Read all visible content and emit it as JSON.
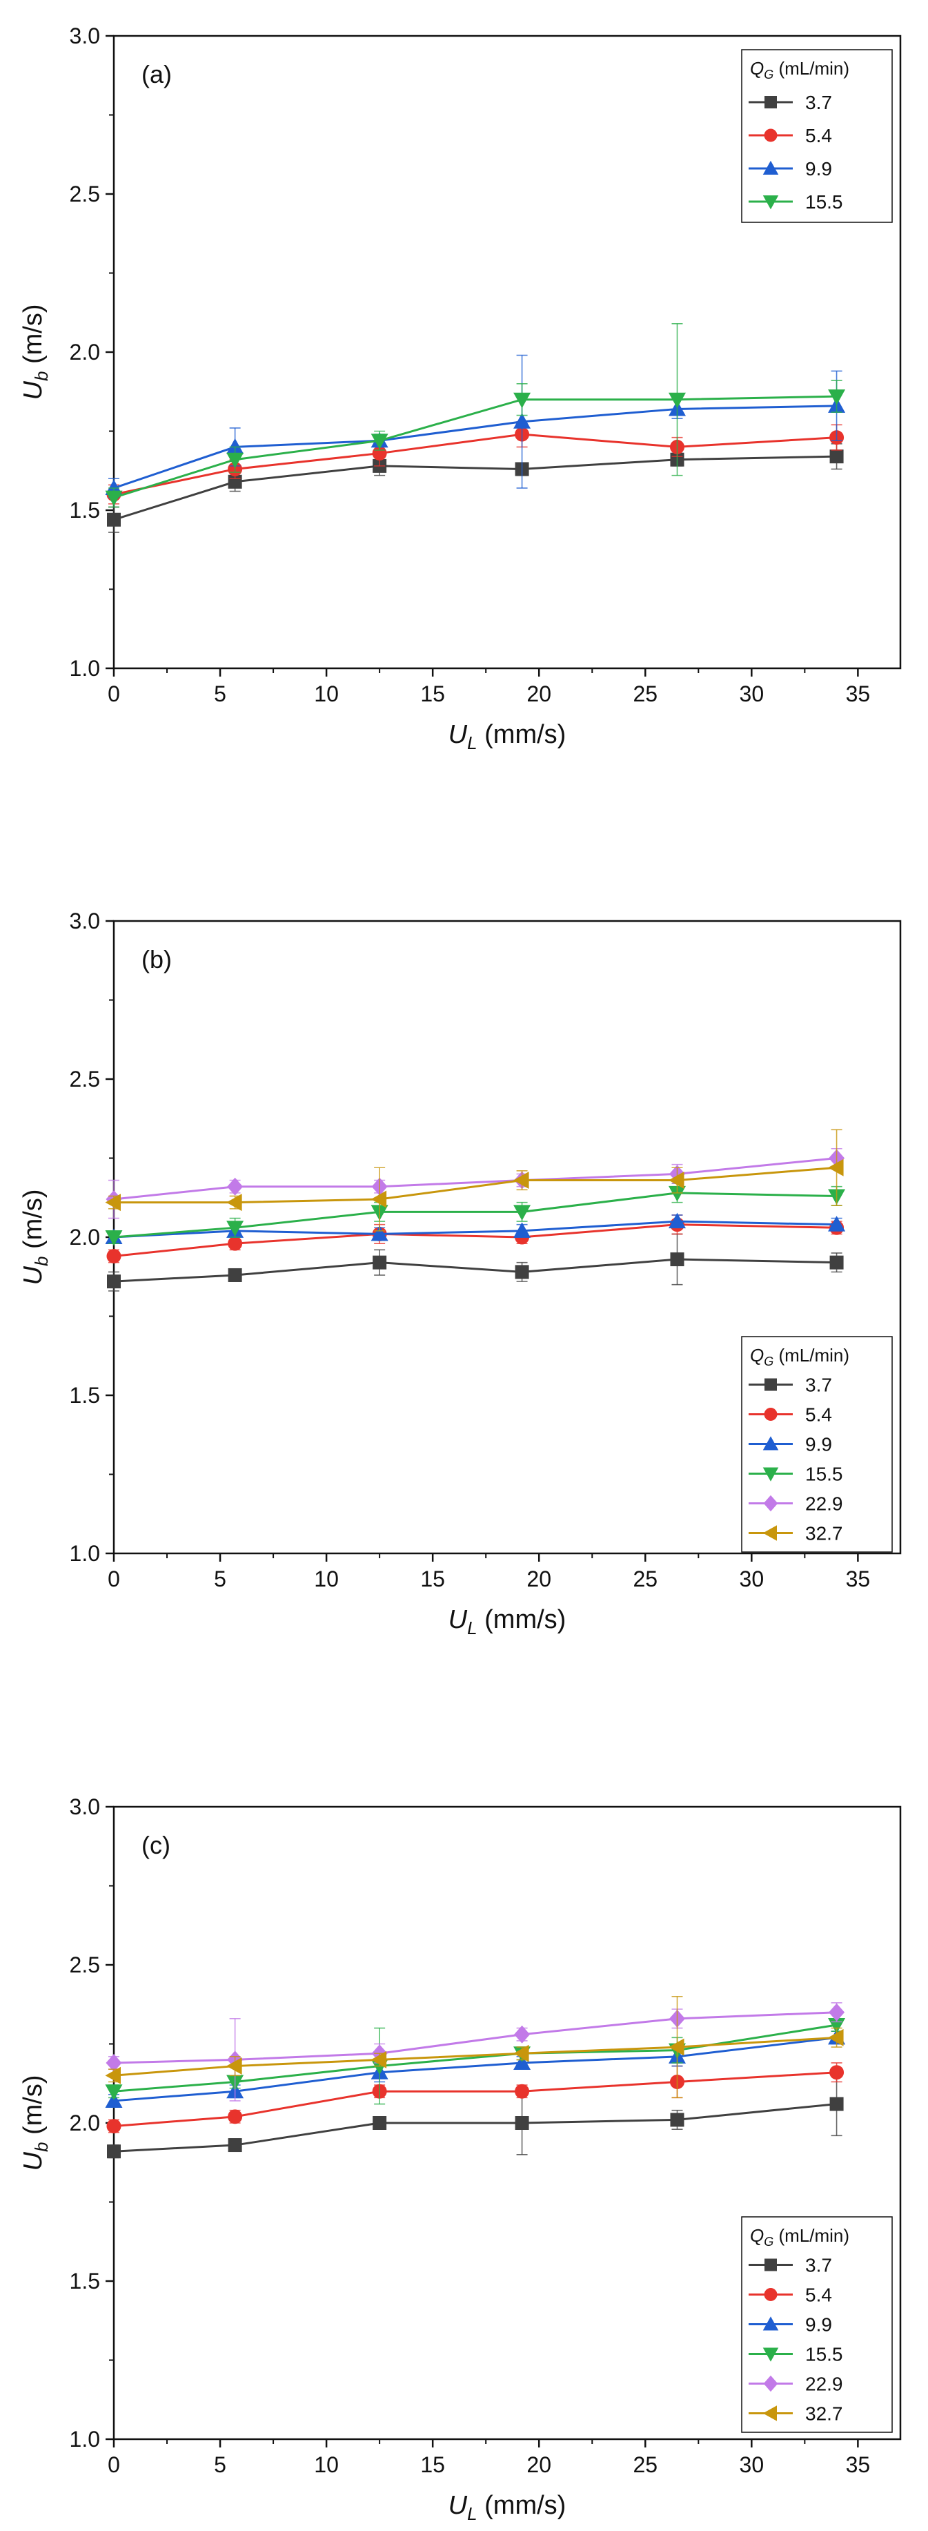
{
  "chart_data": [
    {
      "type": "line",
      "panel_label": "(a)",
      "xlabel": {
        "main": "U",
        "sub": "L",
        "unit": " (mm/s)"
      },
      "ylabel": {
        "main": "U",
        "sub": "b",
        "unit": " (m/s)"
      },
      "xlim": [
        0,
        37
      ],
      "ylim": [
        1.0,
        3.0
      ],
      "xticks": [
        0,
        5,
        10,
        15,
        20,
        25,
        30,
        35
      ],
      "yticks": [
        1.0,
        1.5,
        2.0,
        2.5,
        3.0
      ],
      "xtick_labels": [
        "0",
        "5",
        "10",
        "15",
        "20",
        "25",
        "30",
        "35"
      ],
      "ytick_labels": [
        "1.0",
        "1.5",
        "2.0",
        "2.5",
        "3.0"
      ],
      "legend": {
        "title_main": "Q",
        "title_sub": "G",
        "title_unit": " (mL/min)",
        "placement": "top-right"
      },
      "x": [
        0,
        5.7,
        12.5,
        19.2,
        26.5,
        34
      ],
      "series": [
        {
          "name": "3.7",
          "color": "#404040",
          "marker": "square",
          "values": [
            1.47,
            1.59,
            1.64,
            1.63,
            1.66,
            1.67
          ],
          "errors": [
            0.04,
            0.03,
            0.03,
            0.02,
            0.02,
            0.04
          ]
        },
        {
          "name": "5.4",
          "color": "#e8332c",
          "marker": "circle",
          "values": [
            1.55,
            1.63,
            1.68,
            1.74,
            1.7,
            1.73
          ],
          "errors": [
            0.03,
            0.03,
            0.04,
            0.04,
            0.03,
            0.04
          ]
        },
        {
          "name": "9.9",
          "color": "#1f5ed1",
          "marker": "triangle-up",
          "values": [
            1.57,
            1.7,
            1.72,
            1.78,
            1.82,
            1.83
          ],
          "errors": [
            0.03,
            0.06,
            0.02,
            0.21,
            0.03,
            0.11
          ]
        },
        {
          "name": "15.5",
          "color": "#2bb04a",
          "marker": "triangle-down",
          "values": [
            1.54,
            1.66,
            1.72,
            1.85,
            1.85,
            1.86
          ],
          "errors": [
            0.03,
            0.04,
            0.03,
            0.05,
            0.24,
            0.05
          ]
        }
      ]
    },
    {
      "type": "line",
      "panel_label": "(b)",
      "xlabel": {
        "main": "U",
        "sub": "L",
        "unit": " (mm/s)"
      },
      "ylabel": {
        "main": "U",
        "sub": "b",
        "unit": " (m/s)"
      },
      "xlim": [
        0,
        37
      ],
      "ylim": [
        1.0,
        3.0
      ],
      "xticks": [
        0,
        5,
        10,
        15,
        20,
        25,
        30,
        35
      ],
      "yticks": [
        1.0,
        1.5,
        2.0,
        2.5,
        3.0
      ],
      "xtick_labels": [
        "0",
        "5",
        "10",
        "15",
        "20",
        "25",
        "30",
        "35"
      ],
      "ytick_labels": [
        "1.0",
        "1.5",
        "2.0",
        "2.5",
        "3.0"
      ],
      "legend": {
        "title_main": "Q",
        "title_sub": "G",
        "title_unit": " (mL/min)",
        "placement": "bottom-right"
      },
      "x": [
        0,
        5.7,
        12.5,
        19.2,
        26.5,
        34
      ],
      "series": [
        {
          "name": "3.7",
          "color": "#404040",
          "marker": "square",
          "values": [
            1.86,
            1.88,
            1.92,
            1.89,
            1.93,
            1.92
          ],
          "errors": [
            0.03,
            0.02,
            0.04,
            0.03,
            0.08,
            0.03
          ]
        },
        {
          "name": "5.4",
          "color": "#e8332c",
          "marker": "circle",
          "values": [
            1.94,
            1.98,
            2.01,
            2.0,
            2.04,
            2.03
          ],
          "errors": [
            0.02,
            0.02,
            0.03,
            0.02,
            0.03,
            0.02
          ]
        },
        {
          "name": "9.9",
          "color": "#1f5ed1",
          "marker": "triangle-up",
          "values": [
            2.0,
            2.02,
            2.01,
            2.02,
            2.05,
            2.04
          ],
          "errors": [
            0.02,
            0.02,
            0.02,
            0.02,
            0.02,
            0.02
          ]
        },
        {
          "name": "15.5",
          "color": "#2bb04a",
          "marker": "triangle-down",
          "values": [
            2.0,
            2.03,
            2.08,
            2.08,
            2.14,
            2.13
          ],
          "errors": [
            0.02,
            0.03,
            0.03,
            0.03,
            0.03,
            0.03
          ]
        },
        {
          "name": "22.9",
          "color": "#c27ae8",
          "marker": "diamond",
          "values": [
            2.12,
            2.16,
            2.16,
            2.18,
            2.2,
            2.25
          ],
          "errors": [
            0.06,
            0.02,
            0.02,
            0.02,
            0.03,
            0.03
          ]
        },
        {
          "name": "32.7",
          "color": "#c8960c",
          "marker": "triangle-left",
          "values": [
            2.11,
            2.11,
            2.12,
            2.18,
            2.18,
            2.22
          ],
          "errors": [
            0.02,
            0.02,
            0.1,
            0.03,
            0.04,
            0.12
          ]
        }
      ]
    },
    {
      "type": "line",
      "panel_label": "(c)",
      "xlabel": {
        "main": "U",
        "sub": "L",
        "unit": " (mm/s)"
      },
      "ylabel": {
        "main": "U",
        "sub": "b",
        "unit": " (m/s)"
      },
      "xlim": [
        0,
        37
      ],
      "ylim": [
        1.0,
        3.0
      ],
      "xticks": [
        0,
        5,
        10,
        15,
        20,
        25,
        30,
        35
      ],
      "yticks": [
        1.0,
        1.5,
        2.0,
        2.5,
        3.0
      ],
      "xtick_labels": [
        "0",
        "5",
        "10",
        "15",
        "20",
        "25",
        "30",
        "35"
      ],
      "ytick_labels": [
        "1.0",
        "1.5",
        "2.0",
        "2.5",
        "3.0"
      ],
      "legend": {
        "title_main": "Q",
        "title_sub": "G",
        "title_unit": " (mL/min)",
        "placement": "bottom-right"
      },
      "x": [
        0,
        5.7,
        12.5,
        19.2,
        26.5,
        34
      ],
      "series": [
        {
          "name": "3.7",
          "color": "#404040",
          "marker": "square",
          "values": [
            1.91,
            1.93,
            2.0,
            2.0,
            2.01,
            2.06
          ],
          "errors": [
            0.02,
            0.02,
            0.02,
            0.1,
            0.03,
            0.1
          ]
        },
        {
          "name": "5.4",
          "color": "#e8332c",
          "marker": "circle",
          "values": [
            1.99,
            2.02,
            2.1,
            2.1,
            2.13,
            2.16
          ],
          "errors": [
            0.02,
            0.02,
            0.02,
            0.02,
            0.05,
            0.03
          ]
        },
        {
          "name": "9.9",
          "color": "#1f5ed1",
          "marker": "triangle-up",
          "values": [
            2.07,
            2.1,
            2.16,
            2.19,
            2.21,
            2.27
          ],
          "errors": [
            0.02,
            0.02,
            0.03,
            0.02,
            0.03,
            0.02
          ]
        },
        {
          "name": "15.5",
          "color": "#2bb04a",
          "marker": "triangle-down",
          "values": [
            2.1,
            2.13,
            2.18,
            2.22,
            2.23,
            2.31
          ],
          "errors": [
            0.02,
            0.02,
            0.12,
            0.02,
            0.04,
            0.02
          ]
        },
        {
          "name": "22.9",
          "color": "#c27ae8",
          "marker": "diamond",
          "values": [
            2.19,
            2.2,
            2.22,
            2.28,
            2.33,
            2.35
          ],
          "errors": [
            0.02,
            0.13,
            0.03,
            0.02,
            0.03,
            0.03
          ]
        },
        {
          "name": "32.7",
          "color": "#c8960c",
          "marker": "triangle-left",
          "values": [
            2.15,
            2.18,
            2.2,
            2.22,
            2.24,
            2.27
          ],
          "errors": [
            0.02,
            0.03,
            0.02,
            0.02,
            0.16,
            0.03
          ]
        }
      ]
    }
  ]
}
